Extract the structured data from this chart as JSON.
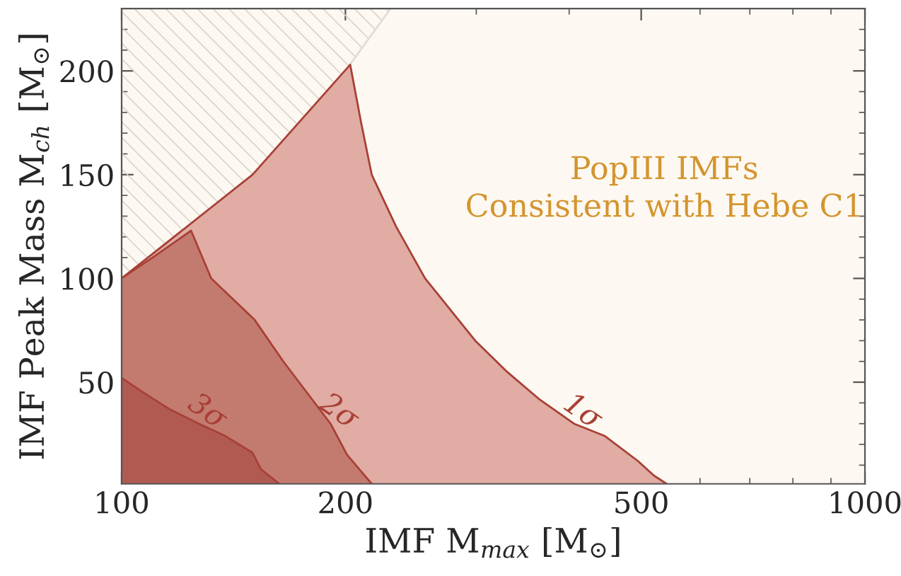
{
  "chart_data": {
    "type": "area",
    "xlabel": "IMF M$_{max}$ [M$_{⊙}$]",
    "ylabel": "IMF Peak Mass M$_{ch}$ [M$_{⊙}$]",
    "log": "x",
    "xlim": [
      100,
      1000
    ],
    "xticks": [
      100,
      200,
      500,
      1000
    ],
    "ylim": [
      1,
      230
    ],
    "yticks": [
      50,
      100,
      150,
      200
    ],
    "grid": false,
    "legend": false,
    "annotations": [
      "PopIII IMFs\nConsistent with Hebe C1"
    ],
    "series": [
      {
        "type": "line",
        "color": "#e0ddd6",
        "x": [
          100,
          125,
          150,
          175,
          200,
          230
        ],
        "values": [
          100,
          125,
          150,
          175,
          200,
          230
        ],
        "lower": [
          100,
          125,
          150,
          175,
          200,
          230
        ],
        "upper": [
          230,
          230,
          230,
          230,
          230,
          230
        ]
      },
      {
        "name": "1σ",
        "color": "#e0aca3",
        "x": [
          100,
          150,
          203,
          210,
          217,
          234,
          256,
          299,
          330,
          364,
          406,
          447,
          495,
          520,
          541
        ],
        "values": [
          100,
          150,
          203,
          175,
          150,
          125,
          100,
          70,
          55,
          42,
          30,
          24,
          12,
          5,
          1
        ]
      },
      {
        "name": "2σ",
        "color": "#c47b6f",
        "x": [
          100,
          110,
          124,
          132,
          151,
          165,
          191,
          201,
          217
        ],
        "values": [
          100,
          110,
          123,
          100,
          80,
          60,
          30,
          15,
          1
        ]
      },
      {
        "name": "3σ",
        "color": "#b05a52",
        "x": [
          100,
          108,
          116,
          127,
          138,
          150,
          154,
          163
        ],
        "values": [
          52,
          44,
          37,
          30,
          24,
          16,
          8,
          1
        ]
      }
    ]
  }
}
